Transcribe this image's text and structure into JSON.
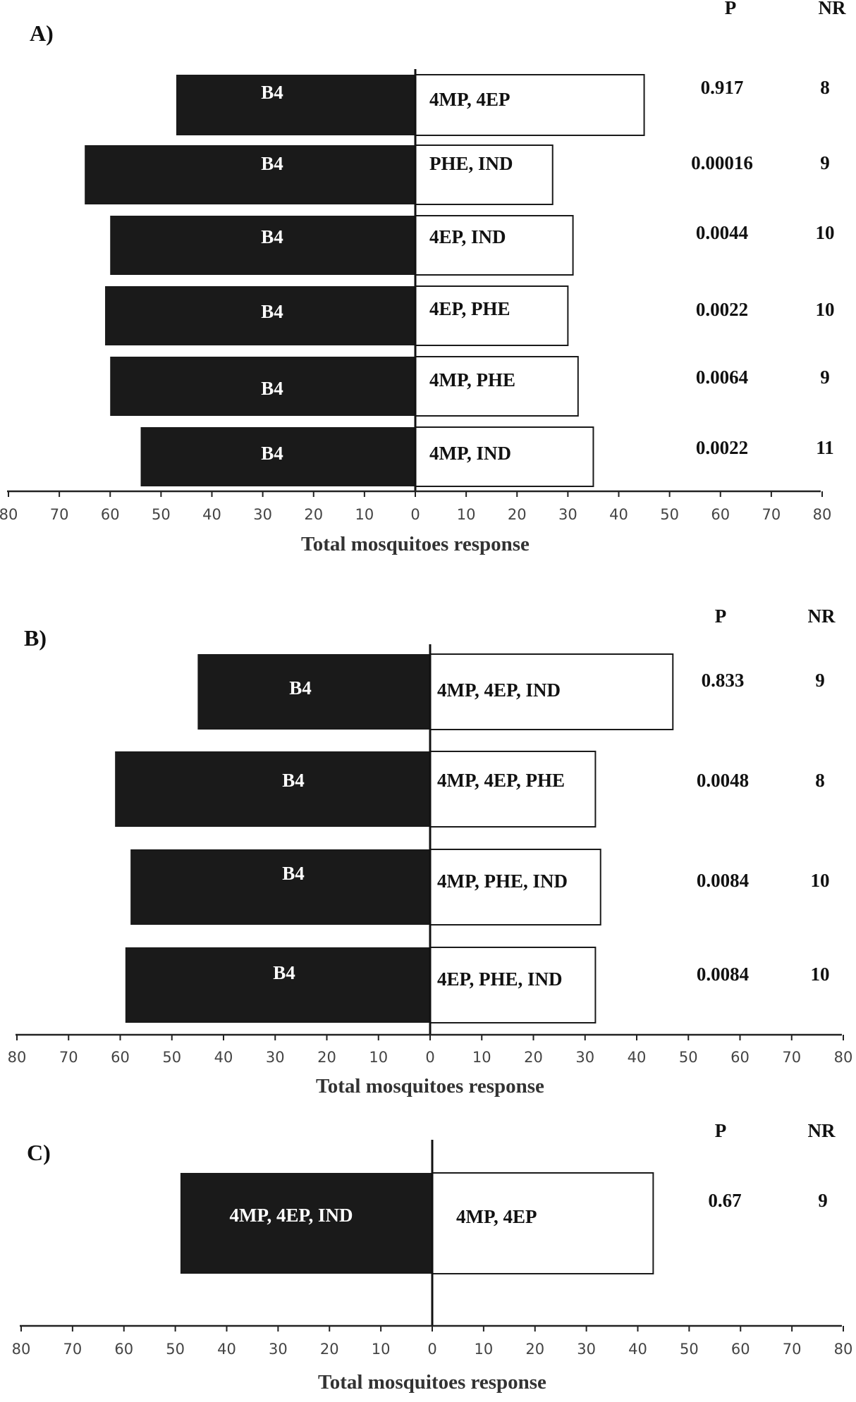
{
  "chart_data": [
    {
      "type": "bar",
      "panel_label": "A)",
      "header_p": "P",
      "header_nr": "NR",
      "xlabel": "Total mosquitoes response",
      "xlim": [
        -80,
        80
      ],
      "tick_labels": [
        "80",
        "70",
        "60",
        "50",
        "40",
        "30",
        "20",
        "10",
        "0",
        "10",
        "20",
        "30",
        "40",
        "50",
        "60",
        "70",
        "80"
      ],
      "rows": [
        {
          "left_label": "B4",
          "left_value": 47,
          "right_label": "4MP, 4EP",
          "right_value": 45,
          "p": "0.917",
          "nr": "8"
        },
        {
          "left_label": "B4",
          "left_value": 65,
          "right_label": "PHE, IND",
          "right_value": 27,
          "p": "0.00016",
          "nr": "9"
        },
        {
          "left_label": "B4",
          "left_value": 60,
          "right_label": "4EP, IND",
          "right_value": 31,
          "p": "0.0044",
          "nr": "10"
        },
        {
          "left_label": "B4",
          "left_value": 61,
          "right_label": "4EP, PHE",
          "right_value": 30,
          "p": "0.0022",
          "nr": "10"
        },
        {
          "left_label": "B4",
          "left_value": 60,
          "right_label": "4MP, PHE",
          "right_value": 32,
          "p": "0.0064",
          "nr": "9"
        },
        {
          "left_label": "B4",
          "left_value": 54,
          "right_label": "4MP, IND",
          "right_value": 35,
          "p": "0.0022",
          "nr": "11"
        }
      ]
    },
    {
      "type": "bar",
      "panel_label": "B)",
      "header_p": "P",
      "header_nr": "NR",
      "xlabel": "Total mosquitoes response",
      "xlim": [
        -80,
        80
      ],
      "tick_labels": [
        "80",
        "70",
        "60",
        "50",
        "40",
        "30",
        "20",
        "10",
        "0",
        "10",
        "20",
        "30",
        "40",
        "50",
        "60",
        "70",
        "80"
      ],
      "rows": [
        {
          "left_label": "B4",
          "left_value": 45,
          "right_label": "4MP, 4EP, IND",
          "right_value": 47,
          "p": "0.833",
          "nr": "9"
        },
        {
          "left_label": "B4",
          "left_value": 61,
          "right_label": "4MP, 4EP, PHE",
          "right_value": 32,
          "p": "0.0048",
          "nr": "8"
        },
        {
          "left_label": "B4",
          "left_value": 58,
          "right_label": "4MP, PHE, IND",
          "right_value": 33,
          "p": "0.0084",
          "nr": "10"
        },
        {
          "left_label": "B4",
          "left_value": 59,
          "right_label": "4EP, PHE, IND",
          "right_value": 32,
          "p": "0.0084",
          "nr": "10"
        }
      ]
    },
    {
      "type": "bar",
      "panel_label": "C)",
      "header_p": "P",
      "header_nr": "NR",
      "xlabel": "Total mosquitoes response",
      "xlim": [
        -80,
        80
      ],
      "tick_labels": [
        "80",
        "70",
        "60",
        "50",
        "40",
        "30",
        "20",
        "10",
        "0",
        "10",
        "20",
        "30",
        "40",
        "50",
        "60",
        "70",
        "80"
      ],
      "rows": [
        {
          "left_label": "4MP, 4EP, IND",
          "left_value": 49,
          "right_label": "4MP, 4EP",
          "right_value": 43,
          "p": "0.67",
          "nr": "9"
        }
      ]
    }
  ]
}
